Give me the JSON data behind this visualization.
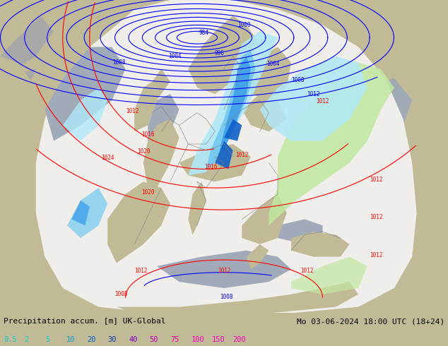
{
  "title_left": "Precipitation accum. [m] UK-Global",
  "title_right": "Mo 03-06-2024 18:00 UTC (18+24)",
  "legend_labels": [
    "0.5",
    "2",
    "5",
    "10",
    "20",
    "30",
    "40",
    "50",
    "75",
    "100",
    "150",
    "200"
  ],
  "legend_colors": [
    "#00d0d0",
    "#00d0d0",
    "#00d0d0",
    "#00a0e0",
    "#0060d0",
    "#0040b0",
    "#8000c0",
    "#c000c0",
    "#e000a0",
    "#ff00c0",
    "#ff00c0",
    "#ff00c0"
  ],
  "bg_color": "#c0ba96",
  "land_color": "#c0ba96",
  "sea_color": "#a0aab4",
  "domain_color": "#f0eeea",
  "prec_cyan1": "#b0e8f8",
  "prec_cyan2": "#70c8f0",
  "prec_blue1": "#40a0e8",
  "prec_blue2": "#1060c8",
  "prec_blue3": "#0030a0",
  "prec_green": "#c0e8a0",
  "figsize": [
    6.34,
    4.9
  ],
  "dpi": 100
}
